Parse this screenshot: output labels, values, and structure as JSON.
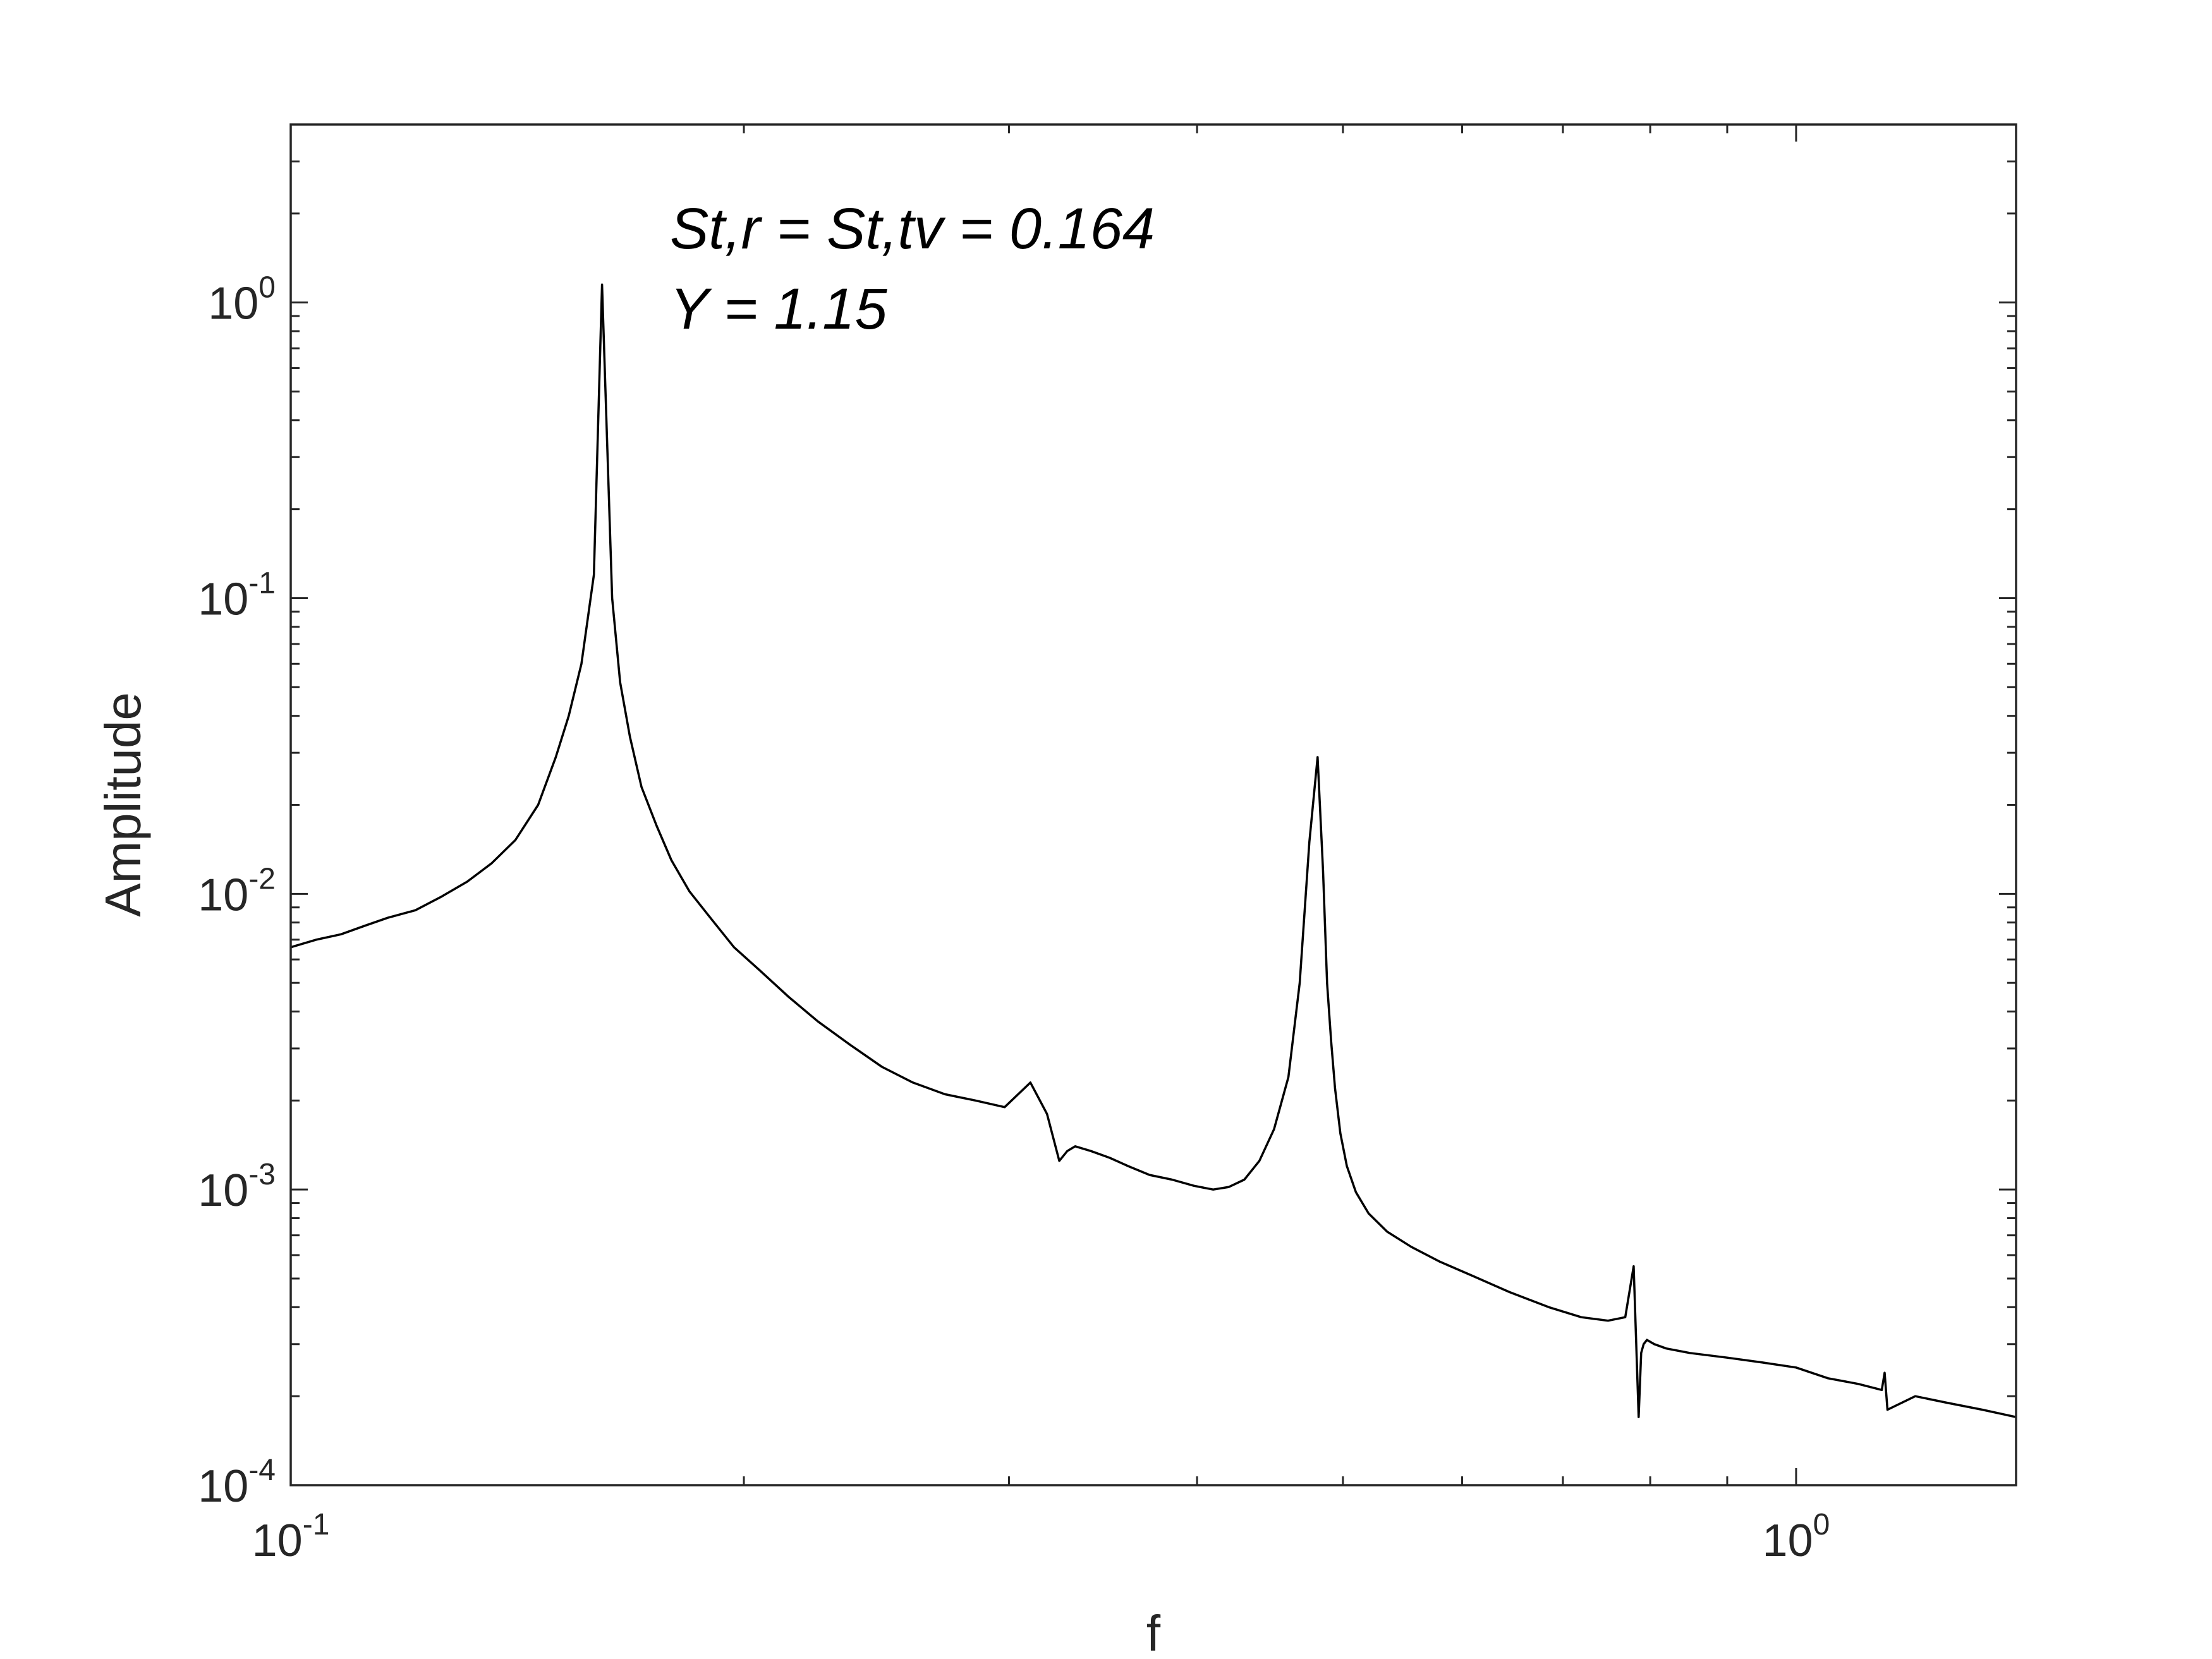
{
  "chart_data": {
    "type": "line",
    "title": "",
    "xlabel": "f",
    "ylabel": "Amplitude",
    "x_scale": "log",
    "y_scale": "log",
    "xlim": [
      0.1,
      1.4
    ],
    "ylim": [
      0.0001,
      4.0
    ],
    "x_ticks": [
      {
        "value": 0.1,
        "base": "10",
        "exp": "-1"
      },
      {
        "value": 1,
        "base": "10",
        "exp": "0"
      }
    ],
    "y_ticks": [
      {
        "value": 1,
        "base": "10",
        "exp": "0"
      },
      {
        "value": 0.1,
        "base": "10",
        "exp": "-1"
      },
      {
        "value": 0.01,
        "base": "10",
        "exp": "-2"
      },
      {
        "value": 0.001,
        "base": "10",
        "exp": "-3"
      },
      {
        "value": 0.0001,
        "base": "10",
        "exp": "-4"
      }
    ],
    "annotations": [
      "St,r = St,tv = 0.164",
      "Y = 1.15"
    ],
    "grid": false,
    "line_color": "#000000",
    "series": [
      {
        "x": [
          0.1,
          0.104,
          0.108,
          0.112,
          0.116,
          0.121,
          0.126,
          0.131,
          0.136,
          0.141,
          0.146,
          0.15,
          0.153,
          0.156,
          0.159,
          0.161,
          0.1635,
          0.1655,
          0.168,
          0.171,
          0.175,
          0.179,
          0.184,
          0.19,
          0.197,
          0.205,
          0.214,
          0.224,
          0.235,
          0.247,
          0.259,
          0.272,
          0.285,
          0.298,
          0.31,
          0.318,
          0.324,
          0.328,
          0.332,
          0.34,
          0.35,
          0.36,
          0.372,
          0.385,
          0.398,
          0.41,
          0.42,
          0.43,
          0.44,
          0.45,
          0.46,
          0.468,
          0.475,
          0.481,
          0.485,
          0.488,
          0.491,
          0.494,
          0.498,
          0.503,
          0.51,
          0.52,
          0.535,
          0.555,
          0.58,
          0.61,
          0.645,
          0.685,
          0.72,
          0.75,
          0.77,
          0.78,
          0.786,
          0.789,
          0.792,
          0.796,
          0.805,
          0.82,
          0.85,
          0.9,
          0.95,
          1.0,
          1.05,
          1.1,
          1.14,
          1.145,
          1.15,
          1.2,
          1.26,
          1.33,
          1.4
        ],
        "y": [
          0.0066,
          0.007,
          0.0073,
          0.0078,
          0.0083,
          0.0088,
          0.0098,
          0.011,
          0.0127,
          0.0152,
          0.02,
          0.029,
          0.04,
          0.06,
          0.12,
          1.15,
          0.1,
          0.052,
          0.034,
          0.023,
          0.017,
          0.013,
          0.0102,
          0.0083,
          0.0066,
          0.0055,
          0.0045,
          0.0037,
          0.0031,
          0.0026,
          0.0023,
          0.0021,
          0.002,
          0.0019,
          0.0023,
          0.0018,
          0.00125,
          0.00135,
          0.0014,
          0.00135,
          0.00128,
          0.0012,
          0.00112,
          0.00108,
          0.00103,
          0.001,
          0.00102,
          0.00108,
          0.00125,
          0.0016,
          0.0024,
          0.005,
          0.015,
          0.029,
          0.012,
          0.005,
          0.0032,
          0.0022,
          0.00155,
          0.0012,
          0.00098,
          0.00083,
          0.00072,
          0.00064,
          0.00057,
          0.00051,
          0.00045,
          0.0004,
          0.00037,
          0.00036,
          0.00037,
          0.00055,
          0.00017,
          0.00028,
          0.0003,
          0.00031,
          0.0003,
          0.00029,
          0.00028,
          0.00027,
          0.00026,
          0.00025,
          0.00023,
          0.00022,
          0.00021,
          0.00024,
          0.00018,
          0.0002,
          0.00019,
          0.00018,
          0.00017
        ]
      }
    ]
  }
}
